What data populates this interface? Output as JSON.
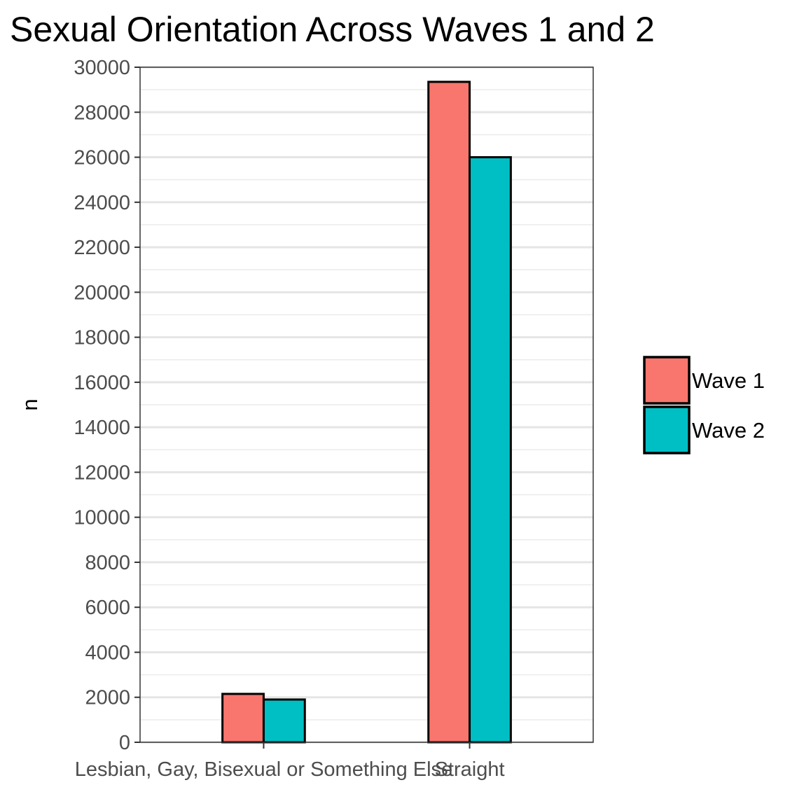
{
  "chart_data": {
    "type": "bar",
    "title": "Sexual Orientation Across Waves 1 and 2",
    "xlabel": "",
    "ylabel": "n",
    "categories": [
      "Lesbian, Gay, Bisexual or Something Else",
      "Straight"
    ],
    "series": [
      {
        "name": "Wave 1",
        "color": "#F8766D",
        "values": [
          2150,
          29350
        ]
      },
      {
        "name": "Wave 2",
        "color": "#00BFC4",
        "values": [
          1900,
          26000
        ]
      }
    ],
    "ylim": [
      0,
      30000
    ],
    "yticks": [
      0,
      2000,
      4000,
      6000,
      8000,
      10000,
      12000,
      14000,
      16000,
      18000,
      20000,
      22000,
      24000,
      26000,
      28000,
      30000
    ],
    "grid": true,
    "legend": "right"
  }
}
